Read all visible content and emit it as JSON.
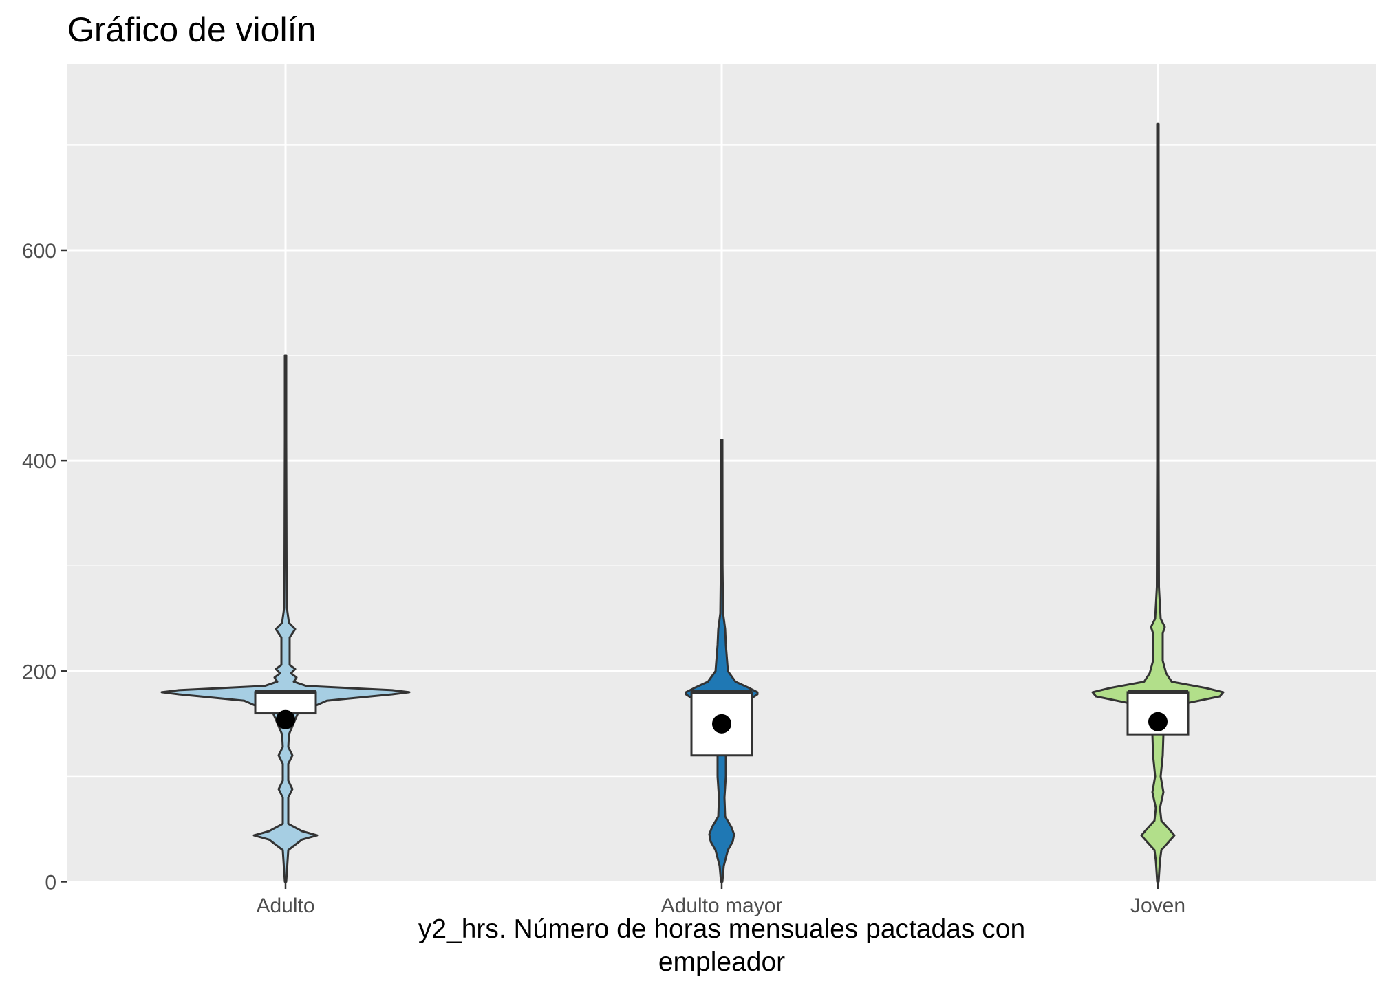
{
  "chart_data": {
    "type": "violin",
    "title": "Gráfico de violín",
    "xlabel": [
      "y2_hrs. Número de horas mensuales pactadas con",
      "empleador"
    ],
    "ylabel": "",
    "ylim": [
      -1,
      777
    ],
    "yticks": [
      0,
      200,
      400,
      600
    ],
    "grid": true,
    "legend": "none",
    "colors": {
      "panel": "#ebebeb",
      "grid": "#ffffff",
      "outline": "#333333",
      "box_fill": "#ffffff",
      "mean_point": "#000000",
      "axis_text": "#4d4d4d"
    },
    "categories": [
      "Adulto",
      "Adulto mayor",
      "Joven"
    ],
    "series": [
      {
        "category": "Adulto",
        "fill": "#a6cee3",
        "min": 0,
        "max": 500,
        "box": {
          "q1": 160,
          "median": 180,
          "q3": 180
        },
        "whisker": [
          150,
          180
        ],
        "mean": 154,
        "density_halfwidth": [
          [
            0,
            1
          ],
          [
            20,
            3
          ],
          [
            30,
            4
          ],
          [
            40,
            24
          ],
          [
            44,
            46
          ],
          [
            48,
            24
          ],
          [
            55,
            4
          ],
          [
            80,
            4
          ],
          [
            88,
            10
          ],
          [
            96,
            4
          ],
          [
            112,
            4
          ],
          [
            120,
            10
          ],
          [
            128,
            4
          ],
          [
            140,
            5
          ],
          [
            160,
            18
          ],
          [
            172,
            60
          ],
          [
            178,
            155
          ],
          [
            180,
            180
          ],
          [
            182,
            155
          ],
          [
            186,
            30
          ],
          [
            190,
            12
          ],
          [
            194,
            16
          ],
          [
            198,
            8
          ],
          [
            202,
            14
          ],
          [
            206,
            6
          ],
          [
            232,
            6
          ],
          [
            240,
            14
          ],
          [
            246,
            5
          ],
          [
            260,
            2
          ],
          [
            300,
            1.5
          ],
          [
            420,
            1
          ],
          [
            500,
            1
          ]
        ]
      },
      {
        "category": "Adulto mayor",
        "fill": "#1f78b4",
        "min": 0,
        "max": 420,
        "box": {
          "q1": 120,
          "median": 180,
          "q3": 180
        },
        "whisker": [
          0,
          180
        ],
        "mean": 150,
        "density_halfwidth": [
          [
            0,
            1
          ],
          [
            15,
            3
          ],
          [
            30,
            9
          ],
          [
            38,
            16
          ],
          [
            45,
            18
          ],
          [
            52,
            14
          ],
          [
            62,
            5
          ],
          [
            80,
            4
          ],
          [
            100,
            6
          ],
          [
            120,
            6
          ],
          [
            140,
            7
          ],
          [
            160,
            12
          ],
          [
            170,
            25
          ],
          [
            175,
            45
          ],
          [
            178,
            52
          ],
          [
            180,
            52
          ],
          [
            184,
            40
          ],
          [
            190,
            20
          ],
          [
            200,
            9
          ],
          [
            225,
            6
          ],
          [
            240,
            5
          ],
          [
            255,
            2
          ],
          [
            300,
            1.2
          ],
          [
            420,
            1
          ]
        ]
      },
      {
        "category": "Joven",
        "fill": "#b2df8a",
        "min": 0,
        "max": 720,
        "box": {
          "q1": 140,
          "median": 180,
          "q3": 180
        },
        "whisker": [
          90,
          180
        ],
        "mean": 152,
        "density_halfwidth": [
          [
            0,
            1
          ],
          [
            20,
            3
          ],
          [
            30,
            5
          ],
          [
            38,
            16
          ],
          [
            44,
            24
          ],
          [
            50,
            16
          ],
          [
            58,
            5
          ],
          [
            70,
            3
          ],
          [
            85,
            8
          ],
          [
            100,
            4
          ],
          [
            120,
            7
          ],
          [
            140,
            8
          ],
          [
            155,
            12
          ],
          [
            170,
            45
          ],
          [
            176,
            90
          ],
          [
            180,
            95
          ],
          [
            184,
            70
          ],
          [
            190,
            20
          ],
          [
            198,
            12
          ],
          [
            210,
            7
          ],
          [
            236,
            7
          ],
          [
            242,
            10
          ],
          [
            250,
            4
          ],
          [
            280,
            1.5
          ],
          [
            400,
            1
          ],
          [
            720,
            1
          ]
        ]
      }
    ]
  }
}
